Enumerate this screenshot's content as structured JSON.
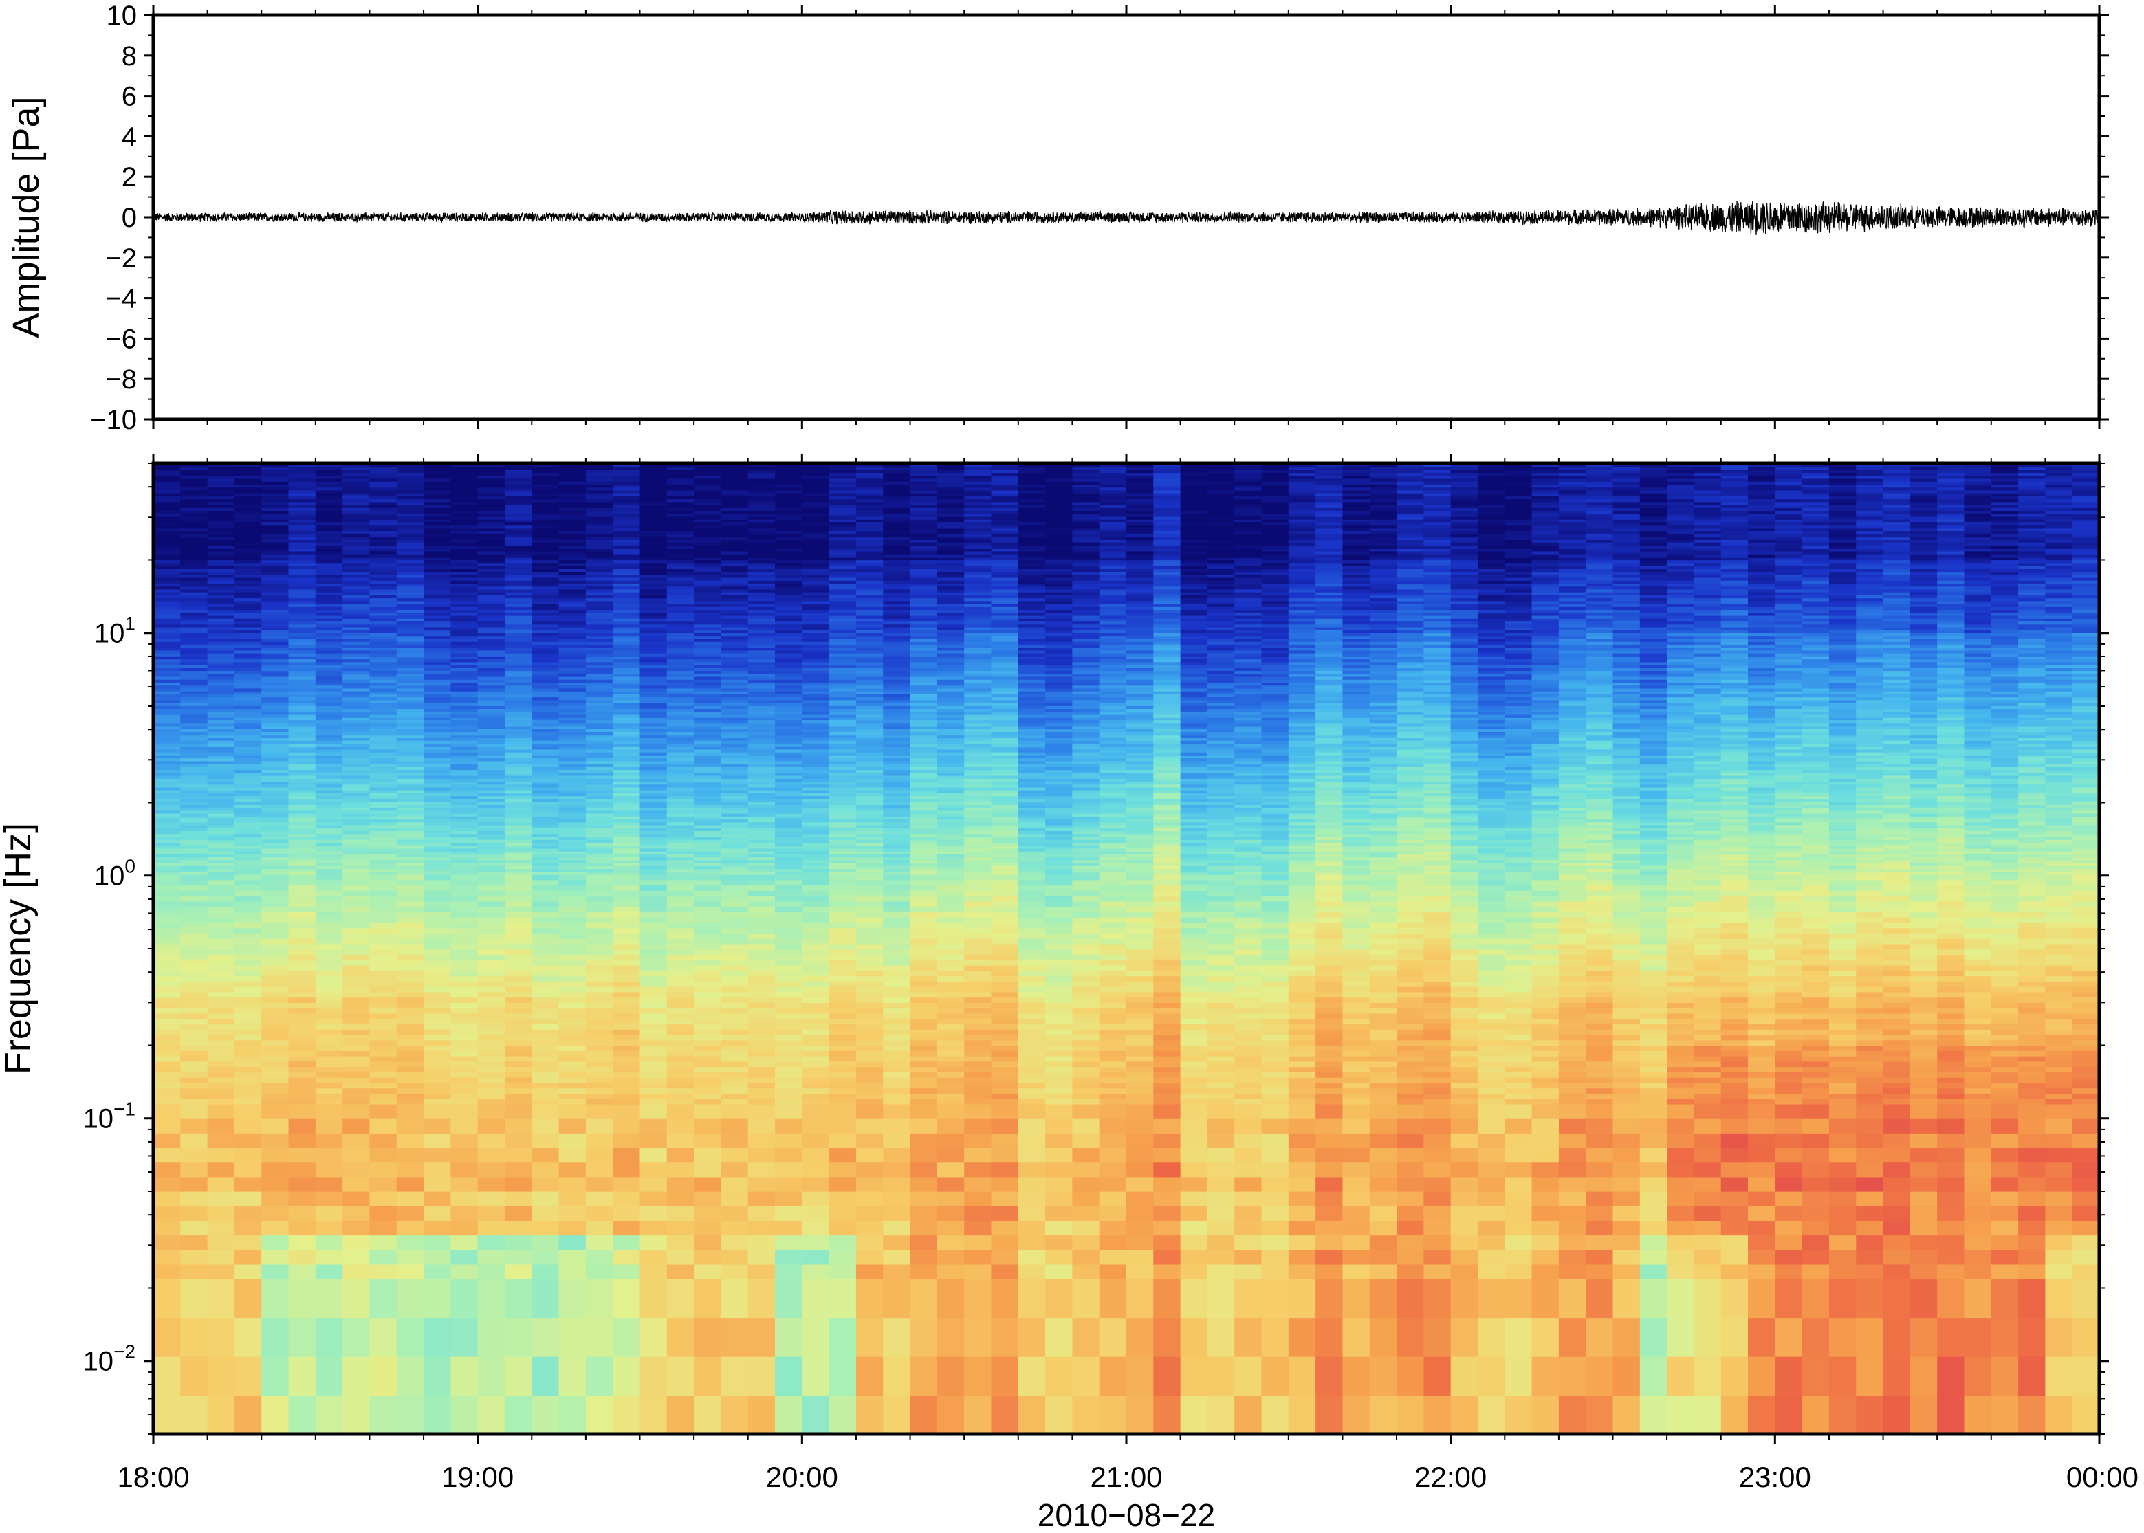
{
  "chart_data": [
    {
      "type": "line",
      "ylabel": "Amplitude [Pa]",
      "ylim": [
        -10,
        10
      ],
      "yticks": [
        10,
        8,
        6,
        4,
        2,
        0,
        -2,
        -4,
        -6,
        -8,
        -10
      ],
      "ytick_labels": [
        "10",
        "8",
        "6",
        "4",
        "2",
        "0",
        "−2",
        "−4",
        "−6",
        "−8",
        "−10"
      ],
      "xlim_hours": [
        18,
        24
      ],
      "series": [
        {
          "color": "#000000",
          "envelope_time_hours": [
            18.0,
            19.0,
            20.0,
            20.1,
            21.0,
            21.5,
            22.0,
            22.3,
            22.6,
            22.8,
            23.0,
            23.1,
            23.5,
            24.0
          ],
          "envelope_amplitude_pa": [
            0.25,
            0.25,
            0.25,
            0.4,
            0.3,
            0.3,
            0.3,
            0.4,
            0.5,
            0.8,
            1.0,
            0.9,
            0.6,
            0.5
          ]
        }
      ]
    },
    {
      "type": "heatmap",
      "ylabel": "Frequency [Hz]",
      "yscale": "log",
      "ylim": [
        0.005,
        50
      ],
      "yticks": [
        0.01,
        0.1,
        1,
        10
      ],
      "ytick_labels": [
        {
          "base": "10",
          "exp": "−2"
        },
        {
          "base": "10",
          "exp": "−1"
        },
        {
          "base": "10",
          "exp": "0"
        },
        {
          "base": "10",
          "exp": "1"
        }
      ],
      "xlabel": "2010−08−22",
      "xlim_hours": [
        18,
        24
      ],
      "xticks": [
        18,
        19,
        20,
        21,
        22,
        23,
        24
      ],
      "xtick_labels": [
        "18:00",
        "19:00",
        "20:00",
        "21:00",
        "22:00",
        "23:00",
        "00:00"
      ],
      "colormap": [
        "#0b0a73",
        "#1a33c8",
        "#2b79e6",
        "#45b6ee",
        "#6fe0dc",
        "#aaf0b4",
        "#e4f08c",
        "#f6cf6a",
        "#f6a24e",
        "#ee6a45",
        "#e0434d"
      ],
      "colormap_note": "relative power, low (dark blue) to high (red)",
      "time_columns": 72,
      "elevated_power_hours": [
        [
          20.3,
          20.7
        ],
        [
          21.0,
          21.2
        ],
        [
          21.6,
          22.0
        ],
        [
          22.3,
          22.5
        ],
        [
          22.7,
          24.0
        ]
      ],
      "quiet_low_freq_hours": [
        [
          18.3,
          19.5
        ],
        [
          19.9,
          20.2
        ],
        [
          22.6,
          22.9
        ],
        [
          23.8,
          24.0
        ]
      ]
    }
  ]
}
